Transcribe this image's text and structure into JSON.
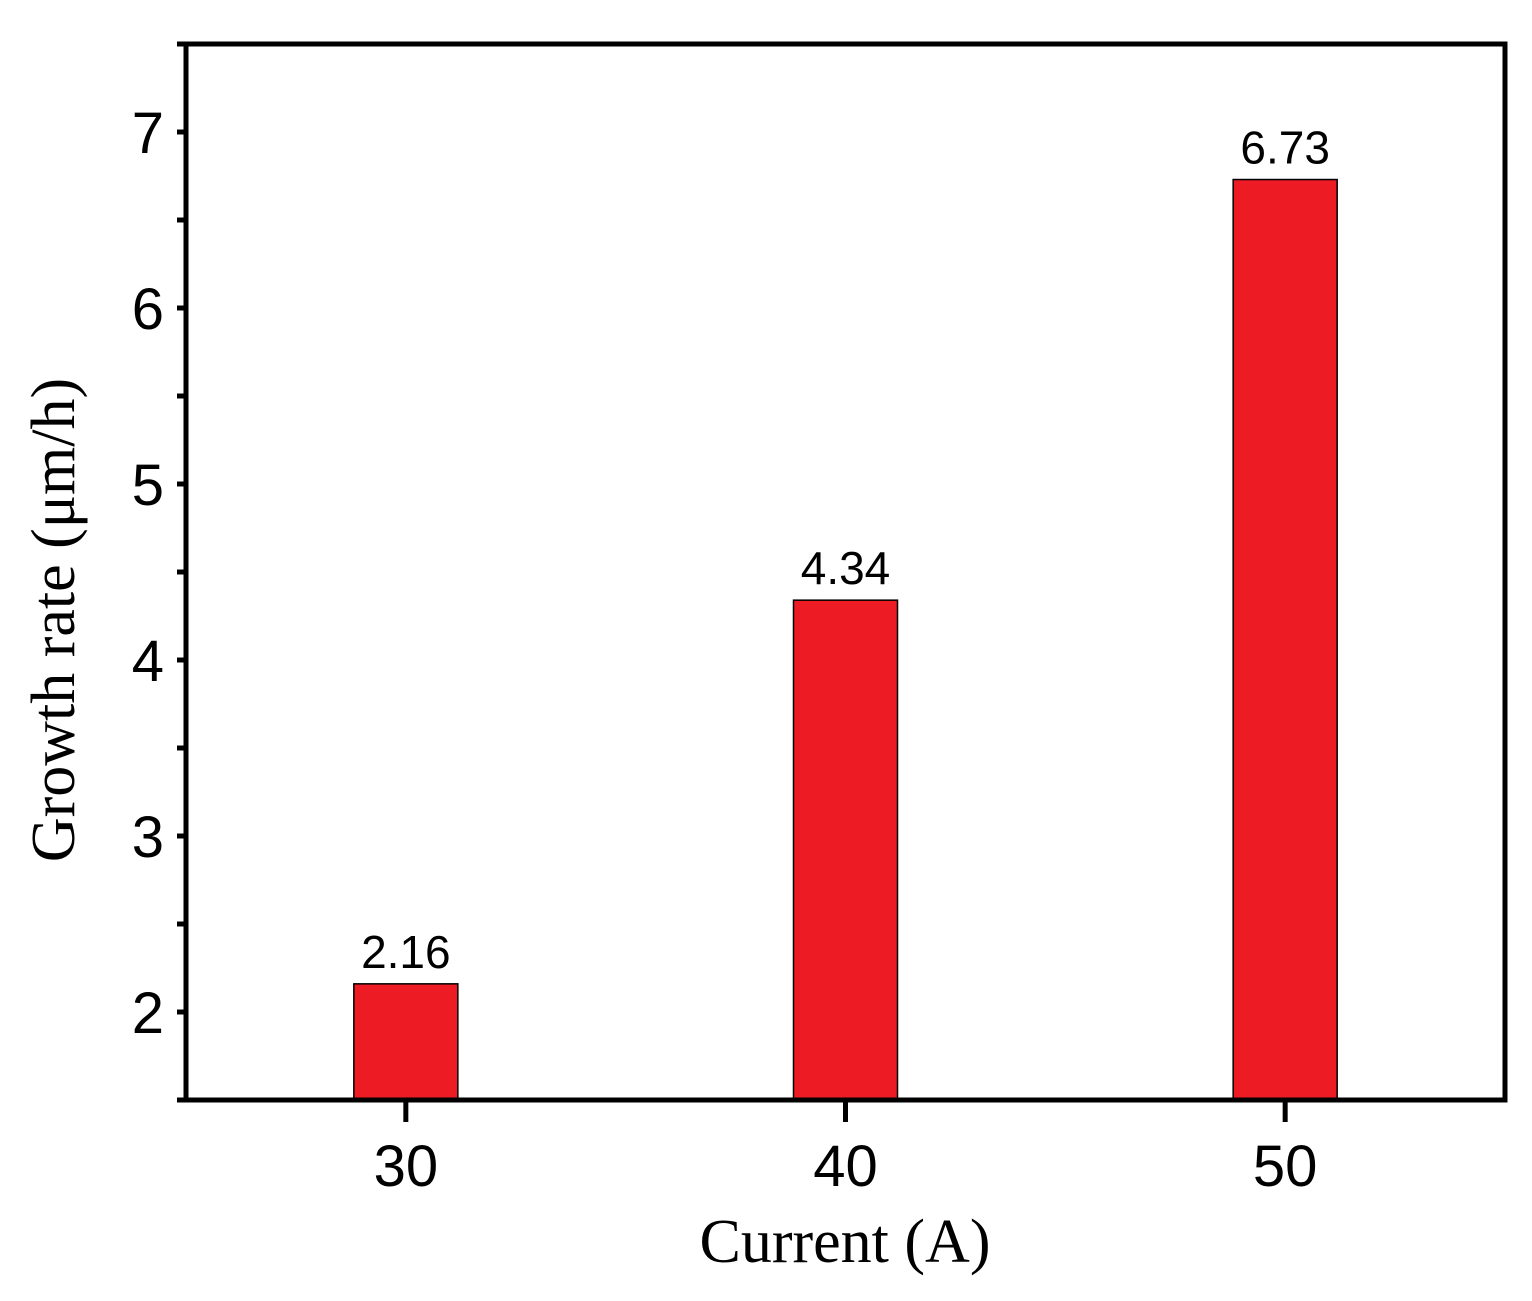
{
  "chart_data": {
    "type": "bar",
    "title": "",
    "xlabel": "Current (A)",
    "ylabel": "Growth rate (μm/h)",
    "categories": [
      "30",
      "40",
      "50"
    ],
    "values": [
      2.16,
      4.34,
      6.73
    ],
    "data_labels": [
      "2.16",
      "4.34",
      "6.73"
    ],
    "ylim": [
      1.5,
      7.5
    ],
    "yticks": [
      2,
      3,
      4,
      5,
      6,
      7
    ],
    "ytick_labels": [
      "2",
      "3",
      "4",
      "5",
      "6",
      "7"
    ],
    "xlim": [
      25,
      55
    ],
    "bar_color": "#ed1c24",
    "grid": false,
    "legend": "none"
  }
}
